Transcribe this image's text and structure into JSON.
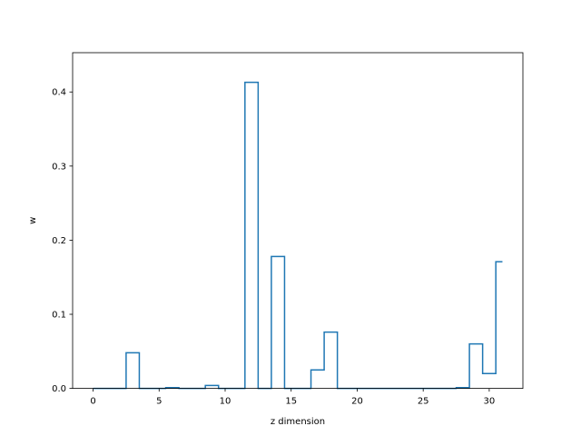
{
  "chart_data": {
    "type": "line",
    "drawstyle": "steps-mid",
    "xlabel": "z dimension",
    "ylabel": "w",
    "xlim": [
      -1.55,
      32.55
    ],
    "ylim": [
      0,
      0.453
    ],
    "xticks": [
      0,
      5,
      10,
      15,
      20,
      25,
      30
    ],
    "yticks": [
      0.0,
      0.1,
      0.2,
      0.3,
      0.4
    ],
    "ytick_labels": [
      "0.0",
      "0.1",
      "0.2",
      "0.3",
      "0.4"
    ],
    "grid": false,
    "color": "#1f77b4",
    "series": [
      {
        "x": [
          0,
          1,
          2,
          3,
          4,
          5,
          6,
          7,
          8,
          9,
          10,
          11,
          12,
          13,
          14,
          15,
          16,
          17,
          18,
          19,
          20,
          21,
          22,
          23,
          24,
          25,
          26,
          27,
          28,
          29,
          30,
          31
        ],
        "values": [
          0,
          0,
          0,
          0.048,
          0,
          0,
          0.001,
          0,
          0,
          0.004,
          0,
          0,
          0.413,
          0,
          0.178,
          0,
          0,
          0.025,
          0.076,
          0,
          0,
          0,
          0,
          0,
          0,
          0,
          0,
          0,
          0.001,
          0.06,
          0.02,
          0.171
        ]
      }
    ]
  }
}
